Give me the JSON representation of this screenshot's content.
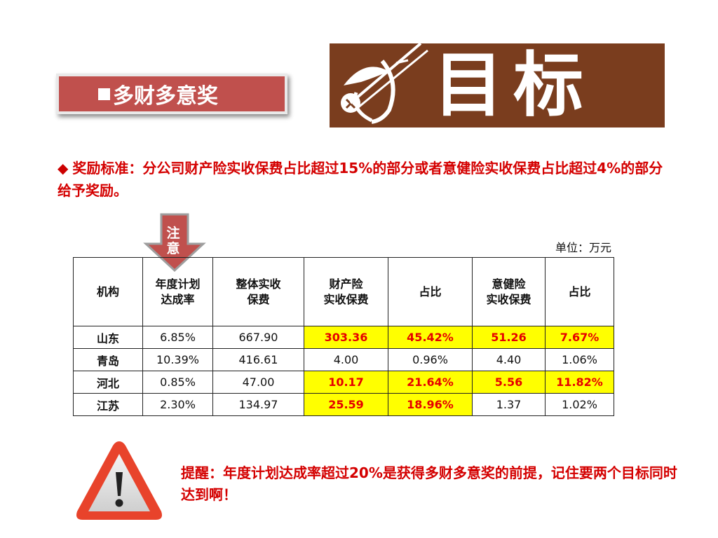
{
  "title": "多财多意奖",
  "banner": {
    "text": "目标"
  },
  "standard": {
    "bullet": "◆",
    "text": "奖励标准：分公司财产险实收保费占比超过15%的部分或者意健险实收保费占比超过4%的部分给予奖励。"
  },
  "note_label": {
    "line1": "注",
    "line2": "意"
  },
  "unit": "单位：万元",
  "table": {
    "headers": [
      {
        "line1": "机构",
        "line2": ""
      },
      {
        "line1": "年度计划",
        "line2": "达成率"
      },
      {
        "line1": "整体实收",
        "line2": "保费"
      },
      {
        "line1": "财产险",
        "line2": "实收保费"
      },
      {
        "line1": "占比",
        "line2": ""
      },
      {
        "line1": "意健险",
        "line2": "实收保费"
      },
      {
        "line1": "占比",
        "line2": ""
      }
    ],
    "rows": [
      [
        "山东",
        "6.85%",
        "667.90",
        "303.36",
        "45.42%",
        "51.26",
        "7.67%"
      ],
      [
        "青岛",
        "10.39%",
        "416.61",
        "4.00",
        "0.96%",
        "4.40",
        "1.06%"
      ],
      [
        "河北",
        "0.85%",
        "47.00",
        "10.17",
        "21.64%",
        "5.56",
        "11.82%"
      ],
      [
        "江苏",
        "2.30%",
        "134.97",
        "25.59",
        "18.96%",
        "1.37",
        "1.02%"
      ]
    ]
  },
  "reminder": "提醒：年度计划达成率超过20%是获得多财多意奖的前提，记住要两个目标同时达到啊！",
  "colors": {
    "accent_red": "#d40000",
    "title_bg": "#c0504d",
    "banner_bg": "#7a3d1e",
    "highlight": "#ffff00"
  },
  "icons": {
    "warning": "warning-triangle-icon",
    "arrow": "down-arrow-icon"
  }
}
